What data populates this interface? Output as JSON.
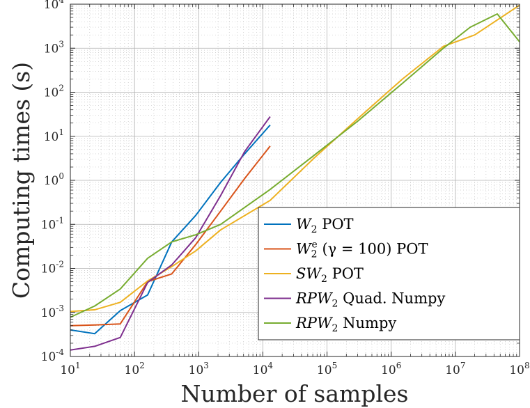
{
  "chart_data": {
    "type": "line",
    "xlabel": "Number of samples",
    "ylabel": "Computing times (s)",
    "xscale": "log",
    "yscale": "log",
    "xlim": [
      10,
      100000000
    ],
    "ylim": [
      0.0001,
      10000
    ],
    "grid": true,
    "minor_grid": true,
    "legend_position": "lower-right",
    "x_ticks": [
      {
        "value": 10,
        "base": "10",
        "exp": "1"
      },
      {
        "value": 100,
        "base": "10",
        "exp": "2"
      },
      {
        "value": 1000,
        "base": "10",
        "exp": "3"
      },
      {
        "value": 10000,
        "base": "10",
        "exp": "4"
      },
      {
        "value": 100000,
        "base": "10",
        "exp": "5"
      },
      {
        "value": 1000000,
        "base": "10",
        "exp": "6"
      },
      {
        "value": 10000000,
        "base": "10",
        "exp": "7"
      },
      {
        "value": 100000000,
        "base": "10",
        "exp": "8"
      }
    ],
    "y_ticks": [
      {
        "value": 0.0001,
        "base": "10",
        "exp": "-4"
      },
      {
        "value": 0.001,
        "base": "10",
        "exp": "-3"
      },
      {
        "value": 0.01,
        "base": "10",
        "exp": "-2"
      },
      {
        "value": 0.1,
        "base": "10",
        "exp": "-1"
      },
      {
        "value": 1,
        "base": "10",
        "exp": "0"
      },
      {
        "value": 10,
        "base": "10",
        "exp": "1"
      },
      {
        "value": 100,
        "base": "10",
        "exp": "2"
      },
      {
        "value": 1000,
        "base": "10",
        "exp": "3"
      },
      {
        "value": 10000,
        "base": "10",
        "exp": "4"
      }
    ],
    "series": [
      {
        "name": "W_2 POT",
        "label_parts": [
          {
            "t": "W",
            "style": "script"
          },
          {
            "t": "2",
            "style": "sub"
          },
          {
            "t": " POT",
            "style": "normal"
          }
        ],
        "color": "#0072BD",
        "x": [
          10,
          24,
          60,
          160,
          380,
          900,
          2200,
          5200,
          13000
        ],
        "y": [
          0.0004,
          0.00033,
          0.0011,
          0.0025,
          0.04,
          0.16,
          0.9,
          4.0,
          18
        ]
      },
      {
        "name": "W_2^e (γ = 100) POT",
        "label_parts": [
          {
            "t": "W",
            "style": "script"
          },
          {
            "t": "2",
            "style": "sub"
          },
          {
            "t": "e",
            "style": "sup"
          },
          {
            "t": " (γ = 100) POT",
            "style": "normal"
          }
        ],
        "color": "#D95319",
        "x": [
          10,
          24,
          60,
          160,
          380,
          900,
          2200,
          5200,
          13000
        ],
        "y": [
          0.0005,
          0.00052,
          0.00055,
          0.005,
          0.0075,
          0.035,
          0.2,
          1.1,
          6
        ]
      },
      {
        "name": "SW_2 POT",
        "label_parts": [
          {
            "t": "SW",
            "style": "script"
          },
          {
            "t": "2",
            "style": "sub"
          },
          {
            "t": " POT",
            "style": "normal"
          }
        ],
        "color": "#EDB120",
        "x": [
          10,
          24,
          60,
          160,
          380,
          900,
          2200,
          13000,
          60000,
          300000,
          1500000,
          6500000,
          20000000,
          100000000
        ],
        "y": [
          0.00105,
          0.00115,
          0.0017,
          0.0052,
          0.011,
          0.025,
          0.075,
          0.35,
          3.0,
          25,
          200,
          1100,
          2000,
          9500
        ]
      },
      {
        "name": "RPW_2 Quad. Numpy",
        "label_parts": [
          {
            "t": "RPW",
            "style": "script"
          },
          {
            "t": "2",
            "style": "sub"
          },
          {
            "t": " Quad. Numpy",
            "style": "normal"
          }
        ],
        "color": "#7E2F8E",
        "x": [
          10,
          24,
          60,
          160,
          380,
          900,
          2200,
          5200,
          13000
        ],
        "y": [
          0.00014,
          0.00017,
          0.00027,
          0.0048,
          0.012,
          0.05,
          0.45,
          4.5,
          28
        ]
      },
      {
        "name": "RPW_2 Numpy",
        "label_parts": [
          {
            "t": "RPW",
            "style": "script"
          },
          {
            "t": "2",
            "style": "sub"
          },
          {
            "t": " Numpy",
            "style": "normal"
          }
        ],
        "color": "#77AC30",
        "x": [
          10,
          24,
          60,
          160,
          380,
          900,
          2200,
          13000,
          60000,
          300000,
          1500000,
          6500000,
          17000000,
          45000000,
          100000000
        ],
        "y": [
          0.00078,
          0.0014,
          0.0034,
          0.017,
          0.04,
          0.058,
          0.1,
          0.62,
          3.5,
          22,
          160,
          1000,
          3000,
          6000,
          1400
        ]
      }
    ]
  }
}
